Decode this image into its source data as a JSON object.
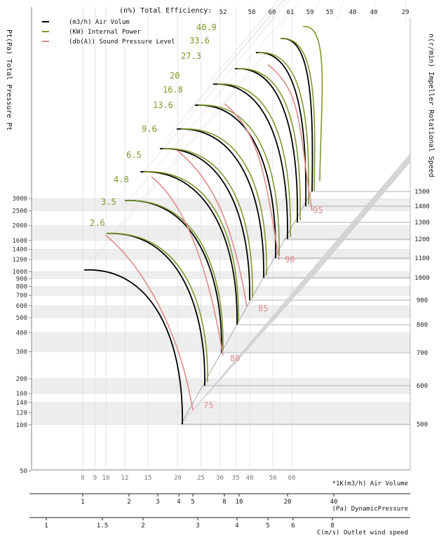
{
  "chart_data": {
    "type": "line",
    "title": "",
    "top_axis_label": "(n%) Total Efficiency:",
    "top_ticks": [
      "52",
      "58",
      "60",
      "61",
      "59",
      "55",
      "48",
      "40",
      "29"
    ],
    "left_axis_label": "Pt(Pa) Total Pressure Pt",
    "left_ticks": [
      3000,
      2500,
      2000,
      1600,
      1400,
      1200,
      1000,
      900,
      800,
      700,
      600,
      500,
      400,
      300,
      200,
      160,
      140,
      120,
      100,
      50
    ],
    "right_axis_label": "n(r/min) Impeller Rotational Speed",
    "speeds": [
      500,
      600,
      700,
      800,
      900,
      1000,
      1100,
      1200,
      1300,
      1400,
      1500
    ],
    "power_labels": [
      "2.6",
      "3.5",
      "4.8",
      "6.5",
      "9.6",
      "13.6",
      "16.8",
      "20",
      "27.3",
      "33.6",
      "40.9"
    ],
    "sound_labels": [
      "75",
      "80",
      "85",
      "90",
      "95"
    ],
    "legend": [
      {
        "symbol": "—",
        "text": "(m3/h) Air Volum",
        "color": "#000000"
      },
      {
        "symbol": "—",
        "text": "(KW) Internal Power",
        "color": "#7a9a2a"
      },
      {
        "symbol": "—",
        "text": "(db(A)) Sound Pressure Level",
        "color": "#e08a8a"
      }
    ],
    "air_volume_label": "*1K(m3/h) Air Volume",
    "air_volume_ticks": [
      "8",
      "9",
      "10",
      "12",
      "15",
      "20",
      "25",
      "30",
      "35",
      "40",
      "50",
      "60"
    ],
    "dynamic_label": "(Pa) DynamicPressure",
    "dynamic_ticks": [
      "1",
      "2",
      "3",
      "4",
      "5",
      "8",
      "10",
      "20",
      "40"
    ],
    "outlet_label": "C(m/s) Outlet wind speed",
    "outlet_ticks": [
      "1",
      "1.5",
      "2",
      "3",
      "4",
      "5",
      "6",
      "8"
    ],
    "colors": {
      "air": "#000000",
      "power": "#7a9a2a",
      "sound": "#e08a8a",
      "grid": "#bbbbbb",
      "band": "#eeeeee"
    },
    "grid": true
  }
}
